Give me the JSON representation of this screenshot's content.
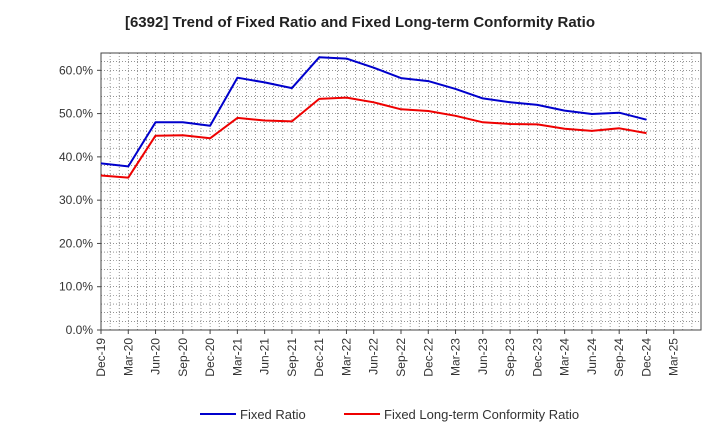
{
  "chart_data": {
    "type": "line",
    "title": "[6392]  Trend of Fixed Ratio and Fixed Long-term Conformity Ratio",
    "x": [
      "Dec-19",
      "Mar-20",
      "Jun-20",
      "Sep-20",
      "Dec-20",
      "Mar-21",
      "Jun-21",
      "Sep-21",
      "Dec-21",
      "Mar-22",
      "Jun-22",
      "Sep-22",
      "Dec-22",
      "Mar-23",
      "Jun-23",
      "Sep-23",
      "Dec-23",
      "Mar-24",
      "Jun-24",
      "Sep-24",
      "Dec-24",
      "Mar-25"
    ],
    "ylim": [
      0,
      64
    ],
    "yticks": [
      0,
      10,
      20,
      30,
      40,
      50,
      60
    ],
    "ytick_labels": [
      "0.0%",
      "10.0%",
      "20.0%",
      "30.0%",
      "40.0%",
      "50.0%",
      "60.0%"
    ],
    "grid": true,
    "legend_position": "bottom",
    "series": [
      {
        "name": "Fixed Ratio",
        "color": "#0000cc",
        "values": [
          38.5,
          37.8,
          48.0,
          48.0,
          47.2,
          58.3,
          57.2,
          55.9,
          63.0,
          62.7,
          60.6,
          58.2,
          57.5,
          55.7,
          53.5,
          52.6,
          52.0,
          50.7,
          49.9,
          50.2,
          48.6,
          null
        ]
      },
      {
        "name": "Fixed Long-term Conformity Ratio",
        "color": "#ee0000",
        "values": [
          35.7,
          35.2,
          44.9,
          45.0,
          44.3,
          49.0,
          48.4,
          48.2,
          53.4,
          53.7,
          52.6,
          51.0,
          50.6,
          49.5,
          48.0,
          47.6,
          47.5,
          46.5,
          46.0,
          46.6,
          45.5,
          null
        ]
      }
    ]
  }
}
